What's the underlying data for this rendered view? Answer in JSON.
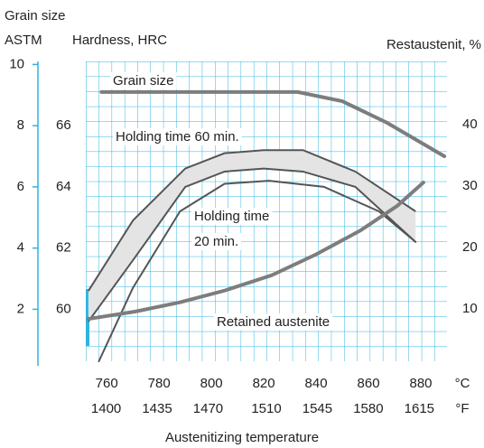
{
  "chart_data": {
    "type": "line",
    "title_lines": [
      "Grain size",
      "ASTM"
    ],
    "y_label": "Hardness, HRC",
    "y3_label": "Restaustenit, %",
    "x_label": "Austenitizing temperature",
    "x_unit": "°C",
    "x2_unit": "°F",
    "xlim": [
      752,
      890
    ],
    "xticks": [
      760,
      780,
      800,
      820,
      840,
      860,
      880
    ],
    "x2lim": [
      1386,
      1634
    ],
    "x2ticks": [
      1400,
      1435,
      1470,
      1510,
      1545,
      1580,
      1615
    ],
    "ylim": [
      0.3,
      10.1
    ],
    "yticks": [
      2,
      4,
      6,
      8,
      10
    ],
    "y2lim": [
      58.3,
      68.1
    ],
    "y2ticks": [
      60,
      62,
      64,
      66
    ],
    "y3lim": [
      1.5,
      50.3
    ],
    "y3ticks": [
      10,
      20,
      30,
      40
    ],
    "annotations": [
      "Grain size",
      "Holding time 60 min.",
      "Holding time",
      "20 min.",
      "Retained austenite"
    ],
    "band": {
      "color": "#e4e4e4",
      "axis": "y2",
      "x": [
        753,
        770,
        790,
        805,
        820,
        835,
        855,
        878
      ],
      "upper": [
        60.6,
        62.9,
        64.6,
        65.1,
        65.2,
        65.2,
        64.5,
        63.2
      ],
      "lower": [
        59.6,
        61.6,
        64.0,
        64.5,
        64.6,
        64.5,
        64.0,
        62.2
      ]
    },
    "series": [
      {
        "color": "#7d7d7d",
        "axis": "y",
        "x": [
          758,
          780,
          800,
          820,
          833,
          850,
          867,
          889
        ],
        "values": [
          9.1,
          9.1,
          9.1,
          9.1,
          9.1,
          8.8,
          8.1,
          7.0
        ]
      },
      {
        "color": "#555555",
        "axis": "y2",
        "x": [
          757,
          770,
          788,
          805,
          822,
          843,
          864,
          878
        ],
        "values": [
          58.3,
          60.7,
          63.2,
          64.1,
          64.2,
          64.0,
          63.2,
          62.2
        ]
      },
      {
        "color": "#7d7d7d",
        "axis": "y3",
        "x": [
          753,
          771,
          788,
          805,
          823,
          840,
          857,
          871,
          881
        ],
        "values": [
          8.4,
          9.6,
          11.1,
          13.0,
          15.5,
          18.9,
          22.8,
          26.8,
          30.6
        ]
      }
    ]
  }
}
